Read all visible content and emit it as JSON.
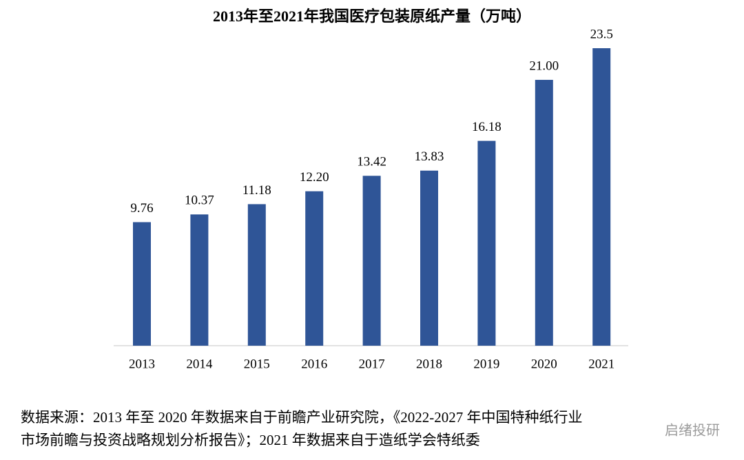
{
  "chart_data": {
    "type": "bar",
    "title": "2013年至2021年我国医疗包装原纸产量（万吨）",
    "categories": [
      "2013",
      "2014",
      "2015",
      "2016",
      "2017",
      "2018",
      "2019",
      "2020",
      "2021"
    ],
    "values": [
      9.76,
      10.37,
      11.18,
      12.2,
      13.42,
      13.83,
      16.18,
      21.0,
      23.5
    ],
    "value_labels": [
      "9.76",
      "10.37",
      "11.18",
      "12.20",
      "13.42",
      "13.83",
      "16.18",
      "21.00",
      "23.5"
    ],
    "color": "#2f5597"
  },
  "source_lines": [
    "数据来源：2013 年至 2020 年数据来自于前瞻产业研究院，《2022-2027 年中国特种纸行业",
    "市场前瞻与投资战略规划分析报告》；2021 年数据来自于造纸学会特纸委"
  ],
  "watermark": "启绪投研"
}
